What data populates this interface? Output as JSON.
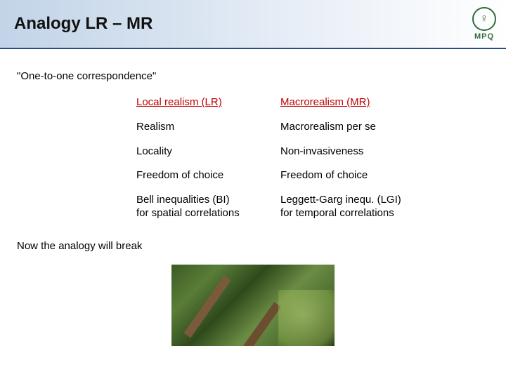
{
  "title": "Analogy LR – MR",
  "logo": {
    "glyph": "♀",
    "label": "MPQ"
  },
  "subtitle": "\"One-to-one correspondence\"",
  "table": {
    "header": {
      "left": "Local realism (LR)",
      "right": "Macrorealism (MR)"
    },
    "rows": [
      {
        "left": "Realism",
        "right": "Macrorealism per se"
      },
      {
        "left": "Locality",
        "right": "Non-invasiveness"
      },
      {
        "left": "Freedom of choice",
        "right": "Freedom of choice"
      },
      {
        "left": "Bell inequalities (BI)\nfor spatial correlations",
        "right": "Leggett-Garg inequ. (LGI)\nfor temporal correlations"
      }
    ]
  },
  "note": "Now the analogy will break",
  "colors": {
    "header_red": "#c00000",
    "title_underline": "#2a4d8a",
    "logo_green": "#2f6b3b"
  }
}
